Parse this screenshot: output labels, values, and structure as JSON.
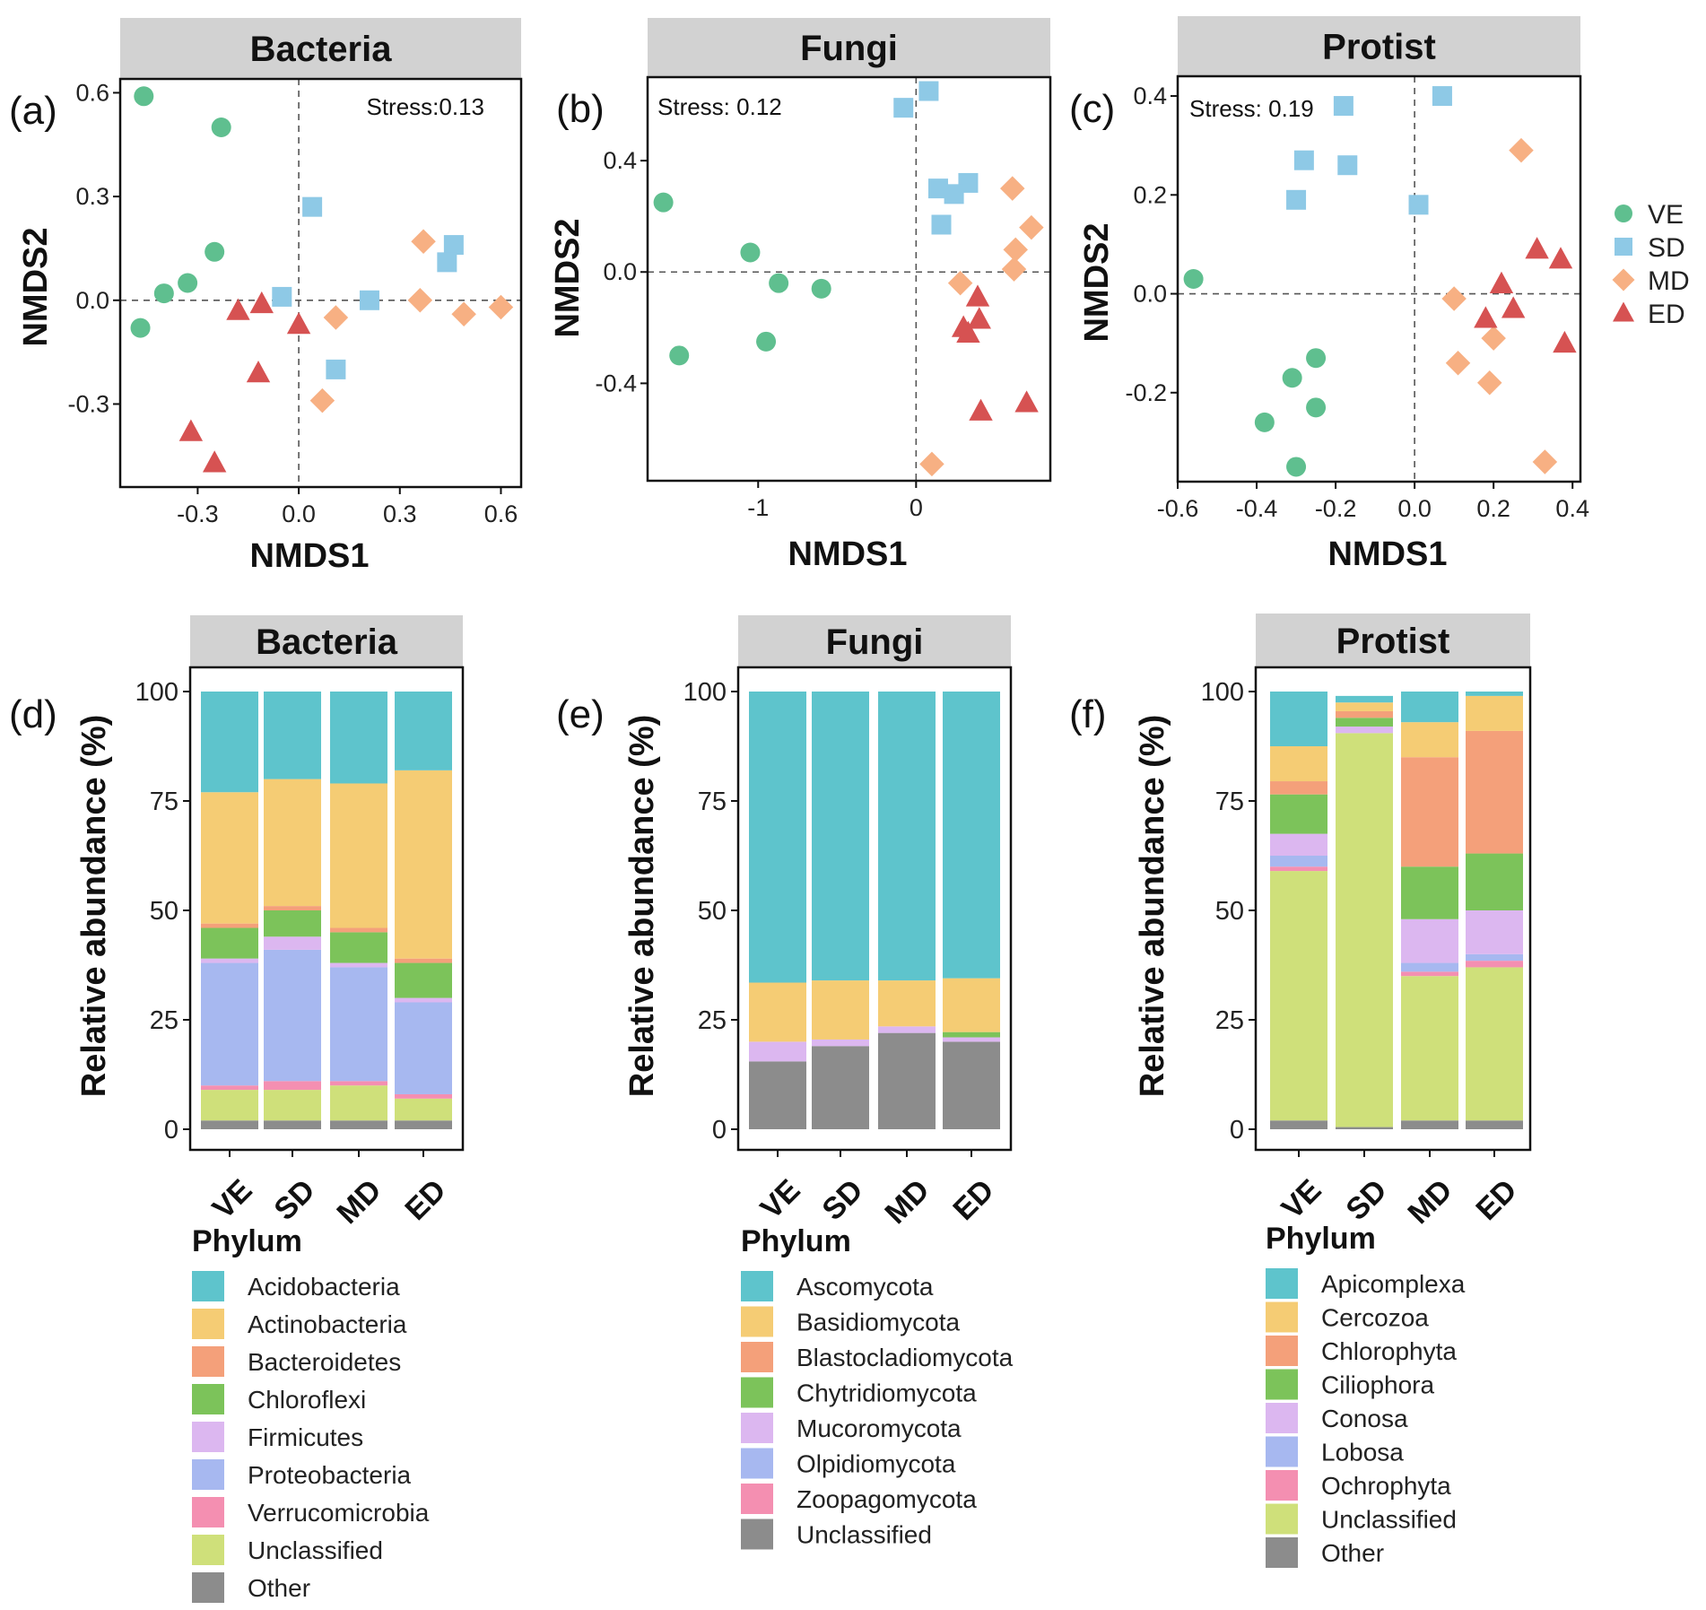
{
  "groups": [
    {
      "id": "VE",
      "color": "#5fbf8f",
      "shape": "circle"
    },
    {
      "id": "SD",
      "color": "#8ec9e6",
      "shape": "square"
    },
    {
      "id": "MD",
      "color": "#f7b083",
      "shape": "diamond"
    },
    {
      "id": "ED",
      "color": "#d65252",
      "shape": "triangle"
    }
  ],
  "chart_data": [
    {
      "panel": "(a)",
      "type": "scatter",
      "title": "Bacteria",
      "xlabel": "NMDS1",
      "ylabel": "NMDS2",
      "xlim": [
        -0.53,
        0.66
      ],
      "ylim": [
        -0.54,
        0.64
      ],
      "xticks": [
        -0.3,
        0.0,
        0.3,
        0.6
      ],
      "xtick_labels": [
        "-0.3",
        "0.0",
        "0.3",
        "0.6"
      ],
      "yticks": [
        -0.3,
        0.0,
        0.3,
        0.6
      ],
      "ytick_labels": [
        "-0.3",
        "0.0",
        "0.3",
        "0.6"
      ],
      "annotation": "Stress:0.13",
      "annotation_pos": "top-right",
      "points": [
        {
          "group": "VE",
          "x": -0.46,
          "y": 0.59
        },
        {
          "group": "VE",
          "x": -0.23,
          "y": 0.5
        },
        {
          "group": "VE",
          "x": -0.25,
          "y": 0.14
        },
        {
          "group": "VE",
          "x": -0.33,
          "y": 0.05
        },
        {
          "group": "VE",
          "x": -0.4,
          "y": 0.02
        },
        {
          "group": "VE",
          "x": -0.47,
          "y": -0.08
        },
        {
          "group": "SD",
          "x": 0.04,
          "y": 0.27
        },
        {
          "group": "SD",
          "x": 0.46,
          "y": 0.16
        },
        {
          "group": "SD",
          "x": 0.44,
          "y": 0.11
        },
        {
          "group": "SD",
          "x": -0.05,
          "y": 0.01
        },
        {
          "group": "SD",
          "x": 0.21,
          "y": 0.0
        },
        {
          "group": "SD",
          "x": 0.11,
          "y": -0.2
        },
        {
          "group": "MD",
          "x": 0.37,
          "y": 0.17
        },
        {
          "group": "MD",
          "x": 0.36,
          "y": 0.0
        },
        {
          "group": "MD",
          "x": 0.49,
          "y": -0.04
        },
        {
          "group": "MD",
          "x": 0.6,
          "y": -0.02
        },
        {
          "group": "MD",
          "x": 0.11,
          "y": -0.05
        },
        {
          "group": "MD",
          "x": 0.07,
          "y": -0.29
        },
        {
          "group": "ED",
          "x": -0.18,
          "y": -0.03
        },
        {
          "group": "ED",
          "x": -0.11,
          "y": -0.01
        },
        {
          "group": "ED",
          "x": 0.0,
          "y": -0.07
        },
        {
          "group": "ED",
          "x": -0.12,
          "y": -0.21
        },
        {
          "group": "ED",
          "x": -0.32,
          "y": -0.38
        },
        {
          "group": "ED",
          "x": -0.25,
          "y": -0.47
        }
      ]
    },
    {
      "panel": "(b)",
      "type": "scatter",
      "title": "Fungi",
      "xlabel": "NMDS1",
      "ylabel": "NMDS2",
      "xlim": [
        -1.7,
        0.85
      ],
      "ylim": [
        -0.75,
        0.7
      ],
      "xticks": [
        -1,
        0
      ],
      "xtick_labels": [
        "-1",
        "0"
      ],
      "yticks": [
        0.4,
        0.0,
        -0.4
      ],
      "ytick_labels": [
        "0.4",
        "0.0",
        "-0.4"
      ],
      "annotation": "Stress: 0.12",
      "annotation_pos": "top-left",
      "points": [
        {
          "group": "VE",
          "x": -1.6,
          "y": 0.25
        },
        {
          "group": "VE",
          "x": -1.05,
          "y": 0.07
        },
        {
          "group": "VE",
          "x": -0.87,
          "y": -0.04
        },
        {
          "group": "VE",
          "x": -0.6,
          "y": -0.06
        },
        {
          "group": "VE",
          "x": -0.95,
          "y": -0.25
        },
        {
          "group": "VE",
          "x": -1.5,
          "y": -0.3
        },
        {
          "group": "SD",
          "x": -0.08,
          "y": 0.59
        },
        {
          "group": "SD",
          "x": 0.08,
          "y": 0.65
        },
        {
          "group": "SD",
          "x": 0.33,
          "y": 0.32
        },
        {
          "group": "SD",
          "x": 0.24,
          "y": 0.28
        },
        {
          "group": "SD",
          "x": 0.14,
          "y": 0.3
        },
        {
          "group": "SD",
          "x": 0.16,
          "y": 0.17
        },
        {
          "group": "MD",
          "x": 0.61,
          "y": 0.3
        },
        {
          "group": "MD",
          "x": 0.73,
          "y": 0.16
        },
        {
          "group": "MD",
          "x": 0.63,
          "y": 0.08
        },
        {
          "group": "MD",
          "x": 0.62,
          "y": 0.01
        },
        {
          "group": "MD",
          "x": 0.28,
          "y": -0.04
        },
        {
          "group": "MD",
          "x": 0.1,
          "y": -0.69
        },
        {
          "group": "ED",
          "x": 0.39,
          "y": -0.09
        },
        {
          "group": "ED",
          "x": 0.4,
          "y": -0.17
        },
        {
          "group": "ED",
          "x": 0.3,
          "y": -0.2
        },
        {
          "group": "ED",
          "x": 0.33,
          "y": -0.22
        },
        {
          "group": "ED",
          "x": 0.41,
          "y": -0.5
        },
        {
          "group": "ED",
          "x": 0.7,
          "y": -0.47
        }
      ]
    },
    {
      "panel": "(c)",
      "type": "scatter",
      "title": "Protist",
      "xlabel": "NMDS1",
      "ylabel": "NMDS2",
      "xlim": [
        -0.6,
        0.42
      ],
      "ylim": [
        -0.38,
        0.44
      ],
      "xticks": [
        -0.6,
        -0.4,
        -0.2,
        0.0,
        0.2,
        0.4
      ],
      "xtick_labels": [
        "-0.6",
        "-0.4",
        "-0.2",
        "0.0",
        "0.2",
        "0.4"
      ],
      "yticks": [
        0.4,
        0.2,
        0.0,
        -0.2
      ],
      "ytick_labels": [
        "0.4",
        "0.2",
        "0.0",
        "-0.2"
      ],
      "annotation": "Stress: 0.19",
      "annotation_pos": "top-left",
      "points": [
        {
          "group": "VE",
          "x": -0.56,
          "y": 0.03
        },
        {
          "group": "VE",
          "x": -0.25,
          "y": -0.13
        },
        {
          "group": "VE",
          "x": -0.31,
          "y": -0.17
        },
        {
          "group": "VE",
          "x": -0.25,
          "y": -0.23
        },
        {
          "group": "VE",
          "x": -0.38,
          "y": -0.26
        },
        {
          "group": "VE",
          "x": -0.3,
          "y": -0.35
        },
        {
          "group": "SD",
          "x": -0.18,
          "y": 0.38
        },
        {
          "group": "SD",
          "x": 0.07,
          "y": 0.4
        },
        {
          "group": "SD",
          "x": -0.28,
          "y": 0.27
        },
        {
          "group": "SD",
          "x": -0.17,
          "y": 0.26
        },
        {
          "group": "SD",
          "x": -0.3,
          "y": 0.19
        },
        {
          "group": "SD",
          "x": 0.01,
          "y": 0.18
        },
        {
          "group": "MD",
          "x": 0.27,
          "y": 0.29
        },
        {
          "group": "MD",
          "x": 0.1,
          "y": -0.01
        },
        {
          "group": "MD",
          "x": 0.2,
          "y": -0.09
        },
        {
          "group": "MD",
          "x": 0.11,
          "y": -0.14
        },
        {
          "group": "MD",
          "x": 0.19,
          "y": -0.18
        },
        {
          "group": "MD",
          "x": 0.33,
          "y": -0.34
        },
        {
          "group": "ED",
          "x": 0.31,
          "y": 0.09
        },
        {
          "group": "ED",
          "x": 0.37,
          "y": 0.07
        },
        {
          "group": "ED",
          "x": 0.22,
          "y": 0.02
        },
        {
          "group": "ED",
          "x": 0.18,
          "y": -0.05
        },
        {
          "group": "ED",
          "x": 0.25,
          "y": -0.03
        },
        {
          "group": "ED",
          "x": 0.38,
          "y": -0.1
        }
      ]
    },
    {
      "panel": "(d)",
      "type": "bar",
      "stacked": true,
      "title": "Bacteria",
      "ylabel": "Relative abundance (%)",
      "ylim": [
        0,
        100
      ],
      "yticks": [
        0,
        25,
        50,
        75,
        100
      ],
      "ytick_labels": [
        "0",
        "25",
        "50",
        "75",
        "100"
      ],
      "categories": [
        "VE",
        "SD",
        "MD",
        "ED"
      ],
      "legend_title": "Phylum",
      "series": [
        {
          "name": "Other",
          "color": "#8c8c8c",
          "values": [
            2,
            2,
            2,
            2
          ]
        },
        {
          "name": "Unclassified",
          "color": "#cfe07a",
          "values": [
            7,
            7,
            8,
            5
          ]
        },
        {
          "name": "Verrucomicrobia",
          "color": "#f48fb1",
          "values": [
            1,
            2,
            1,
            1
          ]
        },
        {
          "name": "Proteobacteria",
          "color": "#a7b8f0",
          "values": [
            28,
            30,
            26,
            21
          ]
        },
        {
          "name": "Firmicutes",
          "color": "#dcb7f0",
          "values": [
            1,
            3,
            1,
            1
          ]
        },
        {
          "name": "Chloroflexi",
          "color": "#7cc35a",
          "values": [
            7,
            6,
            7,
            8
          ]
        },
        {
          "name": "Bacteroidetes",
          "color": "#f4a07a",
          "values": [
            1,
            1,
            1,
            1
          ]
        },
        {
          "name": "Actinobacteria",
          "color": "#f5cc74",
          "values": [
            30,
            29,
            33,
            43
          ]
        },
        {
          "name": "Acidobacteria",
          "color": "#5ec4cc",
          "values": [
            23,
            20,
            21,
            18
          ]
        }
      ],
      "legend_order": [
        "Acidobacteria",
        "Actinobacteria",
        "Bacteroidetes",
        "Chloroflexi",
        "Firmicutes",
        "Proteobacteria",
        "Verrucomicrobia",
        "Unclassified",
        "Other"
      ]
    },
    {
      "panel": "(e)",
      "type": "bar",
      "stacked": true,
      "title": "Fungi",
      "ylabel": "Relative abundance (%)",
      "ylim": [
        0,
        100
      ],
      "yticks": [
        0,
        25,
        50,
        75,
        100
      ],
      "ytick_labels": [
        "0",
        "25",
        "50",
        "75",
        "100"
      ],
      "categories": [
        "VE",
        "SD",
        "MD",
        "ED"
      ],
      "legend_title": "Phylum",
      "series": [
        {
          "name": "Unclassified",
          "color": "#8c8c8c",
          "values": [
            15.5,
            19,
            22,
            20
          ]
        },
        {
          "name": "Zoopagomycota",
          "color": "#f48fb1",
          "values": [
            0,
            0,
            0,
            0
          ]
        },
        {
          "name": "Olpidiomycota",
          "color": "#a7b8f0",
          "values": [
            0,
            0,
            0,
            0
          ]
        },
        {
          "name": "Mucoromycota",
          "color": "#dcb7f0",
          "values": [
            4.5,
            1.5,
            1.5,
            1
          ]
        },
        {
          "name": "Chytridiomycota",
          "color": "#7cc35a",
          "values": [
            0,
            0,
            0,
            1.2
          ]
        },
        {
          "name": "Blastocladiomycota",
          "color": "#f4a07a",
          "values": [
            0,
            0,
            0,
            0
          ]
        },
        {
          "name": "Basidiomycota",
          "color": "#f5cc74",
          "values": [
            13.5,
            13.5,
            10.5,
            12.3
          ]
        },
        {
          "name": "Ascomycota",
          "color": "#5ec4cc",
          "values": [
            66.5,
            66,
            66,
            65.5
          ]
        }
      ],
      "legend_order": [
        "Ascomycota",
        "Basidiomycota",
        "Blastocladiomycota",
        "Chytridiomycota",
        "Mucoromycota",
        "Olpidiomycota",
        "Zoopagomycota",
        "Unclassified"
      ]
    },
    {
      "panel": "(f)",
      "type": "bar",
      "stacked": true,
      "title": "Protist",
      "ylabel": "Relative abundance (%)",
      "ylim": [
        0,
        100
      ],
      "yticks": [
        0,
        25,
        50,
        75,
        100
      ],
      "ytick_labels": [
        "0",
        "25",
        "50",
        "75",
        "100"
      ],
      "categories": [
        "VE",
        "SD",
        "MD",
        "ED"
      ],
      "legend_title": "Phylum",
      "series": [
        {
          "name": "Other",
          "color": "#8c8c8c",
          "values": [
            2,
            0.5,
            2,
            2
          ]
        },
        {
          "name": "Unclassified",
          "color": "#cfe07a",
          "values": [
            57,
            90,
            33,
            35
          ]
        },
        {
          "name": "Ochrophyta",
          "color": "#f48fb1",
          "values": [
            1,
            0,
            1,
            1.5
          ]
        },
        {
          "name": "Lobosa",
          "color": "#a7b8f0",
          "values": [
            2.5,
            0,
            2,
            1.5
          ]
        },
        {
          "name": "Conosa",
          "color": "#dcb7f0",
          "values": [
            5,
            1.5,
            10,
            10
          ]
        },
        {
          "name": "Ciliophora",
          "color": "#7cc35a",
          "values": [
            9,
            2,
            12,
            13
          ]
        },
        {
          "name": "Chlorophyta",
          "color": "#f4a07a",
          "values": [
            3,
            1.5,
            25,
            28
          ]
        },
        {
          "name": "Cercozoa",
          "color": "#f5cc74",
          "values": [
            8,
            2,
            8,
            8
          ]
        },
        {
          "name": "Apicomplexa",
          "color": "#5ec4cc",
          "values": [
            12.5,
            1.5,
            7,
            1
          ]
        }
      ],
      "legend_order": [
        "Apicomplexa",
        "Cercozoa",
        "Chlorophyta",
        "Ciliophora",
        "Conosa",
        "Lobosa",
        "Ochrophyta",
        "Unclassified",
        "Other"
      ]
    }
  ]
}
